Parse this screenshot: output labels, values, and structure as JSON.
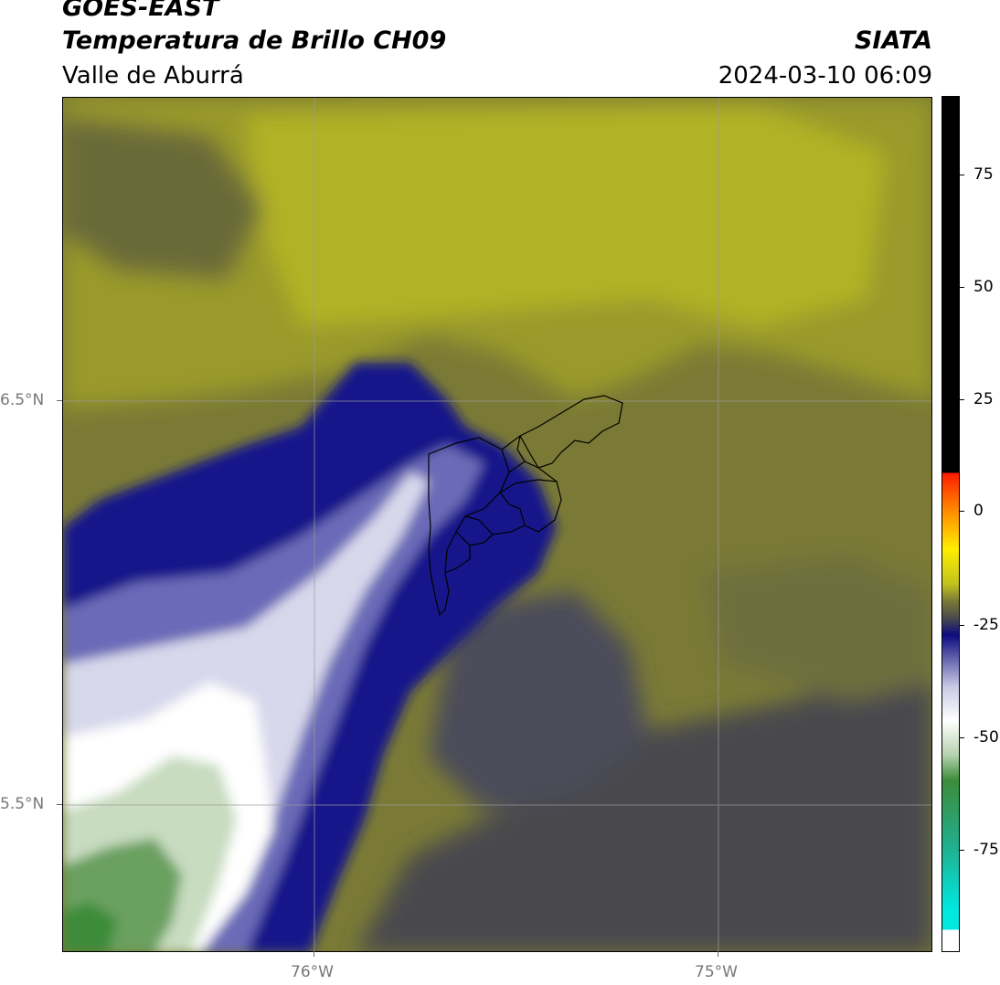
{
  "header": {
    "satellite": "GOES-EAST",
    "product": "Temperatura de Brillo CH09",
    "region": "Valle de Aburrá",
    "agency": "SIATA",
    "datetime": "2024-03-10 06:09"
  },
  "map": {
    "lat_labels": [
      "6.5°N",
      "5.5°N"
    ],
    "lon_labels": [
      "76°W",
      "75°W"
    ],
    "gridlines": true,
    "lon_range": [
      -76.63,
      -74.53
    ],
    "lat_range": [
      5.14,
      7.25
    ]
  },
  "colorbar": {
    "ticks": [
      "75",
      "50",
      "25",
      "0",
      "-25",
      "-50",
      "-75"
    ],
    "range": [
      -97,
      92
    ],
    "colors": {
      "black": "#000000",
      "red": "#ff1a00",
      "orange": "#ff8000",
      "yellow": "#ffee00",
      "olive_light": "#c2c21e",
      "olive_mid": "#7a7a36",
      "dark_gray": "#4a4a4e",
      "navy": "#0c0c80",
      "lavender": "#c8c8e4",
      "white": "#ffffff",
      "green_light": "#b7d3b0",
      "green": "#3c8c3a",
      "teal": "#20b090",
      "cyan": "#00e8e0"
    }
  }
}
